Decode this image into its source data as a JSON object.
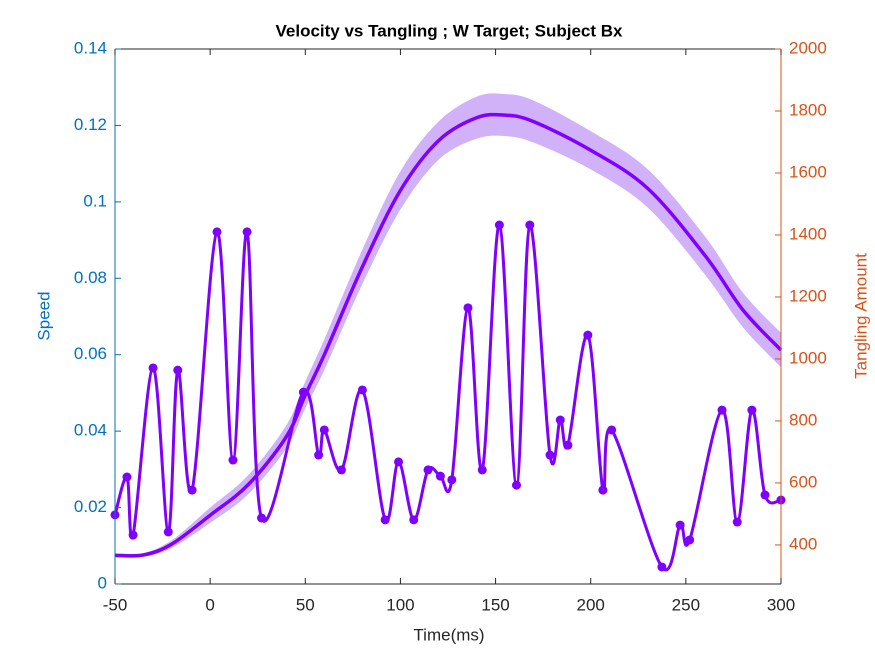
{
  "chart_data": {
    "type": "line",
    "title": "Velocity vs Tangling ; W Target; Subject Bx",
    "xlabel": "Time(ms)",
    "ylabel": "Speed",
    "y2label": "Tangling Amount",
    "xlim": [
      -50,
      300
    ],
    "xticks": [
      -50,
      0,
      50,
      100,
      150,
      200,
      250,
      300
    ],
    "ylim": [
      0,
      0.14
    ],
    "yticks": [
      0,
      0.02,
      0.04,
      0.06,
      0.08,
      0.1,
      0.12,
      0.14
    ],
    "y2lim": [
      274,
      2000
    ],
    "y2ticks": [
      400,
      600,
      800,
      1000,
      1200,
      1400,
      1600,
      1800,
      2000
    ],
    "left_axis_color": "#0072bd",
    "right_axis_color": "#d95319",
    "series": [
      {
        "color": "#8000ff",
        "band_color": "#c9a3f7",
        "axis": "y",
        "markers": false,
        "x": [
          -50,
          -35,
          -20,
          0,
          20,
          40,
          50,
          60,
          80,
          100,
          120,
          140,
          155,
          170,
          200,
          230,
          260,
          280,
          300
        ],
        "values": [
          0.0075,
          0.0076,
          0.0105,
          0.018,
          0.026,
          0.0385,
          0.0495,
          0.06,
          0.083,
          0.103,
          0.116,
          0.122,
          0.1227,
          0.121,
          0.1135,
          0.1035,
          0.086,
          0.0717,
          0.0612
        ],
        "errors": [
          0.0005,
          0.0005,
          0.001,
          0.002,
          0.0025,
          0.003,
          0.0035,
          0.004,
          0.0045,
          0.005,
          0.005,
          0.0055,
          0.0055,
          0.0055,
          0.005,
          0.005,
          0.005,
          0.0045,
          0.0045
        ]
      },
      {
        "color": "#8000ff",
        "axis": "y2",
        "markers": true,
        "x": [
          -50,
          -43.7,
          -40.5,
          -30,
          -22,
          -17,
          -9.5,
          3.6,
          12,
          19.4,
          27,
          49,
          57,
          60,
          69,
          80,
          92,
          99,
          107,
          114.5,
          121,
          127,
          135.5,
          143,
          152,
          161,
          168,
          178.6,
          184,
          188,
          198.5,
          206.4,
          211,
          237.4,
          247,
          252,
          269,
          277,
          284.7,
          291.6,
          300
        ],
        "values": [
          497,
          619,
          432,
          971,
          442,
          964,
          577,
          1410,
          674,
          1410,
          487,
          893,
          690,
          771,
          642,
          900,
          481,
          668,
          481,
          642,
          622,
          610,
          1165,
          642,
          1432,
          593,
          1432,
          690,
          803,
          722,
          1077,
          577,
          771,
          329,
          464,
          416,
          835,
          474,
          835,
          561,
          545
        ]
      }
    ]
  }
}
